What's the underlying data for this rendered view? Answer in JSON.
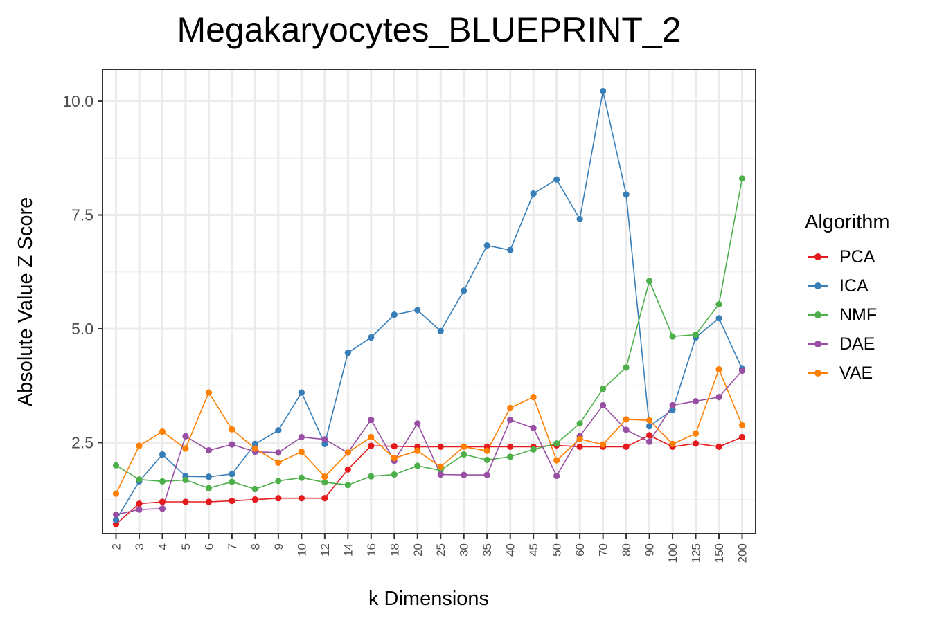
{
  "chart_data": {
    "type": "line",
    "title": "Megakaryocytes_BLUEPRINT_2",
    "xlabel": "k Dimensions",
    "ylabel": "Absolute Value Z Score",
    "categories": [
      "2",
      "3",
      "4",
      "5",
      "6",
      "7",
      "8",
      "9",
      "10",
      "12",
      "14",
      "16",
      "18",
      "20",
      "25",
      "30",
      "35",
      "40",
      "45",
      "50",
      "60",
      "70",
      "80",
      "90",
      "100",
      "125",
      "150",
      "200"
    ],
    "ylim": [
      0.5,
      10.7
    ],
    "yticks": [
      2.5,
      5.0,
      7.5,
      10.0
    ],
    "ytick_labels": [
      "2.5",
      "5.0",
      "7.5",
      "10.0"
    ],
    "grid": true,
    "legend_title": "Algorithm",
    "legend_position": "right",
    "series": [
      {
        "name": "PCA",
        "color": "#e41a1c",
        "values": [
          0.71,
          1.16,
          1.2,
          1.2,
          1.2,
          1.22,
          1.25,
          1.28,
          1.28,
          1.28,
          1.91,
          2.43,
          2.42,
          2.41,
          2.41,
          2.41,
          2.41,
          2.41,
          2.41,
          2.44,
          2.41,
          2.41,
          2.41,
          2.66,
          2.41,
          2.48,
          2.41,
          2.62
        ]
      },
      {
        "name": "ICA",
        "color": "#377eb8",
        "values": [
          0.8,
          1.65,
          2.24,
          1.76,
          1.75,
          1.81,
          2.47,
          2.77,
          3.6,
          2.47,
          4.47,
          4.81,
          5.31,
          5.41,
          4.95,
          5.84,
          6.83,
          6.73,
          7.97,
          8.28,
          7.41,
          10.22,
          7.95,
          2.86,
          3.22,
          4.81,
          5.23,
          4.12
        ]
      },
      {
        "name": "NMF",
        "color": "#4daf4a",
        "values": [
          2.0,
          1.69,
          1.65,
          1.68,
          1.5,
          1.64,
          1.48,
          1.66,
          1.73,
          1.63,
          1.57,
          1.76,
          1.8,
          1.99,
          1.89,
          2.24,
          2.12,
          2.19,
          2.35,
          2.48,
          2.92,
          3.68,
          4.15,
          6.05,
          4.83,
          4.87,
          5.54,
          8.3
        ]
      },
      {
        "name": "DAE",
        "color": "#984ea3",
        "values": [
          0.92,
          1.03,
          1.05,
          2.64,
          2.33,
          2.46,
          2.3,
          2.28,
          2.62,
          2.57,
          2.28,
          3.0,
          2.1,
          2.92,
          1.8,
          1.79,
          1.79,
          3.0,
          2.82,
          1.77,
          2.64,
          3.32,
          2.78,
          2.52,
          3.32,
          3.41,
          3.5,
          4.08
        ]
      },
      {
        "name": "VAE",
        "color": "#ff7f00",
        "values": [
          1.38,
          2.43,
          2.74,
          2.37,
          3.6,
          2.79,
          2.37,
          2.06,
          2.3,
          1.75,
          2.28,
          2.62,
          2.16,
          2.32,
          1.97,
          2.41,
          2.32,
          3.26,
          3.5,
          2.11,
          2.58,
          2.46,
          3.01,
          2.99,
          2.47,
          2.7,
          4.11,
          2.88
        ]
      }
    ]
  }
}
